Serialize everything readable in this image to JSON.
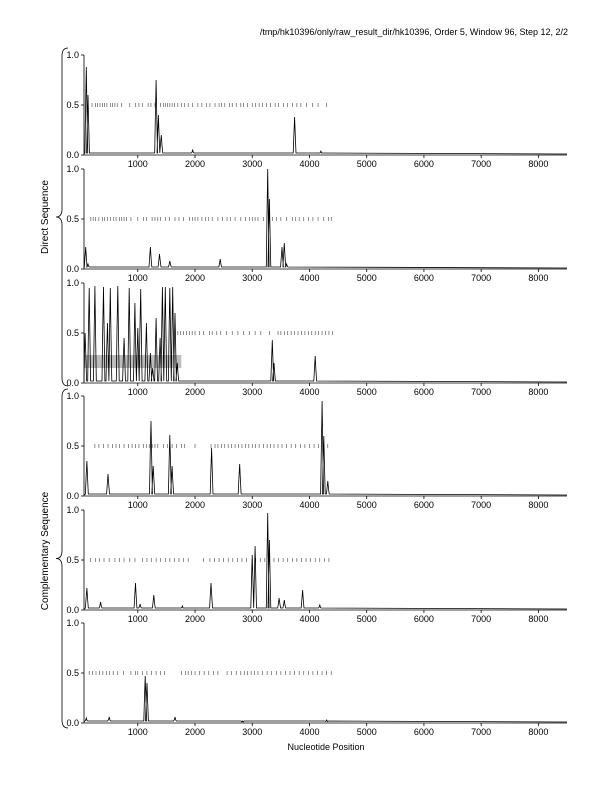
{
  "title": "/tmp/hk10396/only/raw_result_dir/hk10396, Order 5, Window 96, Step 12, 2/2",
  "group_labels": {
    "direct": "Direct Sequence",
    "complementary": "Complementary Sequence"
  },
  "xlabel": "Nucleotide Position",
  "chart_data": {
    "type": "line",
    "title": "/tmp/hk10396/only/raw_result_dir/hk10396, Order 5, Window 96, Step 12, 2/2",
    "xlabel": "Nucleotide Position",
    "xlim": [
      60,
      8500
    ],
    "ylim": [
      0,
      1.0
    ],
    "xticks": [
      1000,
      2000,
      3000,
      4000,
      5000,
      6000,
      7000,
      8000
    ],
    "yticks": [
      0.0,
      0.5,
      1.0
    ],
    "ytick_labels": [
      "0.0",
      "0.5",
      "1.0"
    ],
    "grid": false,
    "threshold_y": 0.5,
    "panels": [
      {
        "group": "direct",
        "frame": 1,
        "peaks": [
          [
            100,
            0.88
          ],
          [
            130,
            0.6
          ],
          [
            1320,
            0.75
          ],
          [
            1360,
            0.4
          ],
          [
            1410,
            0.2
          ],
          [
            1960,
            0.05
          ],
          [
            3740,
            0.38
          ],
          [
            4200,
            0.04
          ]
        ],
        "hit_marks": [
          200,
          260,
          300,
          340,
          380,
          420,
          460,
          520,
          560,
          600,
          640,
          720,
          860,
          960,
          1020,
          1080,
          1180,
          1230,
          1300,
          1400,
          1450,
          1480,
          1520,
          1560,
          1600,
          1640,
          1700,
          1760,
          1820,
          1880,
          1960,
          2050,
          2120,
          2200,
          2260,
          2350,
          2420,
          2460,
          2520,
          2600,
          2650,
          2720,
          2800,
          2850,
          2920,
          3000,
          3060,
          3120,
          3180,
          3250,
          3320,
          3400,
          3460,
          3550,
          3620,
          3700,
          3780,
          3850,
          3950,
          4050,
          4150,
          4300
        ]
      },
      {
        "group": "direct",
        "frame": 2,
        "peaks": [
          [
            90,
            0.22
          ],
          [
            130,
            0.05
          ],
          [
            1220,
            0.22
          ],
          [
            1380,
            0.15
          ],
          [
            1560,
            0.08
          ],
          [
            2440,
            0.1
          ],
          [
            3270,
            1.0
          ],
          [
            3300,
            0.7
          ],
          [
            3520,
            0.22
          ],
          [
            3560,
            0.26
          ],
          [
            3600,
            0.05
          ]
        ],
        "hit_marks": [
          180,
          220,
          260,
          320,
          380,
          420,
          470,
          520,
          580,
          620,
          680,
          720,
          760,
          800,
          880,
          1000,
          1100,
          1150,
          1250,
          1300,
          1350,
          1400,
          1480,
          1550,
          1650,
          1720,
          1800,
          1900,
          1960,
          2000,
          2050,
          2120,
          2180,
          2240,
          2300,
          2400,
          2480,
          2560,
          2620,
          2700,
          2800,
          2880,
          2950,
          3000,
          3050,
          3100,
          3200,
          3300,
          3350,
          3420,
          3500,
          3600,
          3700,
          3760,
          3820,
          3900,
          3980,
          4060,
          4150,
          4250,
          4330,
          4380
        ]
      },
      {
        "group": "direct",
        "frame": 3,
        "peaks": [
          [
            80,
            0.5
          ],
          [
            150,
            0.95
          ],
          [
            250,
            0.97
          ],
          [
            400,
            0.96
          ],
          [
            470,
            0.6
          ],
          [
            520,
            0.95
          ],
          [
            650,
            0.97
          ],
          [
            760,
            0.45
          ],
          [
            850,
            0.95
          ],
          [
            950,
            0.8
          ],
          [
            1000,
            0.55
          ],
          [
            1050,
            0.94
          ],
          [
            1150,
            0.6
          ],
          [
            1220,
            0.3
          ],
          [
            1260,
            0.15
          ],
          [
            1320,
            0.65
          ],
          [
            1390,
            0.45
          ],
          [
            1430,
            0.96
          ],
          [
            1480,
            0.96
          ],
          [
            1560,
            0.95
          ],
          [
            1610,
            0.96
          ],
          [
            1650,
            0.7
          ],
          [
            1690,
            0.2
          ],
          [
            3350,
            0.43
          ],
          [
            3380,
            0.2
          ],
          [
            4100,
            0.27
          ]
        ],
        "hit_marks": [
          1700,
          1750,
          1800,
          1850,
          1900,
          1950,
          2000,
          2080,
          2150,
          2250,
          2300,
          2380,
          2450,
          2550,
          2650,
          2750,
          2850,
          2950,
          3050,
          3150,
          3300,
          3450,
          3500,
          3560,
          3620,
          3680,
          3740,
          3800,
          3860,
          3920,
          3980,
          4040,
          4100,
          4160,
          4220,
          4280,
          4340,
          4400
        ],
        "shaded_region": [
          60,
          1760,
          0.15,
          0.28
        ]
      },
      {
        "group": "complementary",
        "frame": 1,
        "peaks": [
          [
            110,
            0.35
          ],
          [
            480,
            0.22
          ],
          [
            1230,
            0.75
          ],
          [
            1270,
            0.3
          ],
          [
            1560,
            0.61
          ],
          [
            1600,
            0.3
          ],
          [
            2290,
            0.48
          ],
          [
            2780,
            0.32
          ],
          [
            4220,
            0.95
          ],
          [
            4250,
            0.6
          ],
          [
            4320,
            0.15
          ]
        ],
        "hit_marks": [
          250,
          320,
          400,
          480,
          560,
          620,
          680,
          760,
          840,
          900,
          960,
          1020,
          1100,
          1150,
          1200,
          1250,
          1300,
          1350,
          1450,
          1520,
          1600,
          1680,
          1760,
          1820,
          2000,
          2280,
          2350,
          2400,
          2460,
          2520,
          2580,
          2640,
          2700,
          2760,
          2820,
          2880,
          2940,
          3000,
          3060,
          3120,
          3200,
          3260,
          3320,
          3380,
          3450,
          3520,
          3600,
          3680,
          3760,
          3840,
          3920,
          4000,
          4080,
          4160,
          4240,
          4320
        ]
      },
      {
        "group": "complementary",
        "frame": 2,
        "peaks": [
          [
            110,
            0.22
          ],
          [
            350,
            0.08
          ],
          [
            960,
            0.27
          ],
          [
            1040,
            0.06
          ],
          [
            1280,
            0.15
          ],
          [
            1780,
            0.04
          ],
          [
            2280,
            0.27
          ],
          [
            3000,
            0.55
          ],
          [
            3050,
            0.64
          ],
          [
            3270,
            0.97
          ],
          [
            3300,
            0.7
          ],
          [
            3470,
            0.12
          ],
          [
            3560,
            0.1
          ],
          [
            3880,
            0.2
          ],
          [
            4180,
            0.05
          ]
        ],
        "hit_marks": [
          170,
          260,
          330,
          410,
          500,
          600,
          680,
          760,
          860,
          950,
          1080,
          1160,
          1240,
          1320,
          1400,
          1480,
          1560,
          1640,
          1720,
          1800,
          1880,
          2150,
          2260,
          2340,
          2420,
          2500,
          2580,
          2660,
          2740,
          2820,
          2900,
          3000,
          3060,
          3140,
          3220,
          3300,
          3380,
          3460,
          3540,
          3620,
          3700,
          3780,
          3860,
          3940,
          4020,
          4100,
          4180,
          4260,
          4340
        ]
      },
      {
        "group": "complementary",
        "frame": 3,
        "peaks": [
          [
            100,
            0.05
          ],
          [
            500,
            0.06
          ],
          [
            1130,
            0.47
          ],
          [
            1160,
            0.4
          ],
          [
            1650,
            0.06
          ],
          [
            2830,
            0.02
          ],
          [
            4300,
            0.03
          ]
        ],
        "hit_marks": [
          150,
          210,
          270,
          330,
          390,
          450,
          510,
          570,
          650,
          750,
          880,
          960,
          1000,
          1080,
          1160,
          1240,
          1320,
          1400,
          1470,
          1760,
          1830,
          1880,
          1940,
          2000,
          2080,
          2160,
          2240,
          2320,
          2400,
          2560,
          2640,
          2720,
          2800,
          2860,
          2920,
          2980,
          3040,
          3100,
          3180,
          3260,
          3340,
          3420,
          3500,
          3580,
          3660,
          3740,
          3820,
          3900,
          3980,
          4060,
          4140,
          4220,
          4300,
          4380
        ]
      }
    ]
  }
}
